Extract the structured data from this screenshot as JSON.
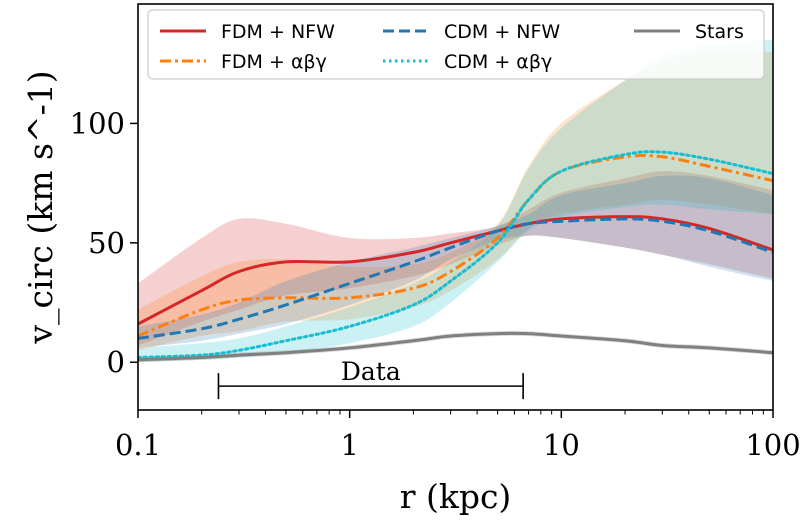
{
  "chart_data": {
    "type": "line",
    "title": "",
    "xlabel": "r (kpc)",
    "ylabel": "v_circ (km s^-1)",
    "xscale": "log",
    "xlim": [
      0.1,
      100
    ],
    "ylim": [
      -20,
      150
    ],
    "grid": false,
    "legend_position": "top",
    "x_ticks": [
      0.1,
      1,
      10,
      100
    ],
    "x_tick_labels": [
      "0.1",
      "1",
      "10",
      "100"
    ],
    "y_ticks": [
      0,
      50,
      100
    ],
    "y_tick_labels": [
      "0",
      "50",
      "100"
    ],
    "x": [
      0.1,
      0.2,
      0.3,
      0.5,
      1,
      2,
      3,
      5,
      7,
      10,
      20,
      30,
      50,
      100
    ],
    "series": [
      {
        "name": "FDM + NFW",
        "color": "#d62728",
        "style": "solid",
        "values": [
          16,
          30,
          38,
          42,
          42,
          46,
          50,
          55,
          58,
          60,
          61,
          60,
          56,
          47
        ],
        "band_upper": [
          33,
          52,
          60,
          58,
          52,
          52,
          54,
          57,
          64,
          71,
          77,
          80,
          78,
          72
        ],
        "band_lower": [
          7,
          17,
          22,
          28,
          31,
          36,
          41,
          49,
          53,
          52,
          48,
          45,
          41,
          35
        ]
      },
      {
        "name": "FDM + αβγ",
        "color": "#ff7f0e",
        "style": "dashdot",
        "values": [
          11,
          22,
          26,
          27,
          27,
          31,
          38,
          52,
          68,
          80,
          86,
          86,
          82,
          76
        ],
        "band_upper": [
          22,
          36,
          42,
          43,
          40,
          41,
          46,
          58,
          82,
          100,
          118,
          126,
          130,
          130
        ],
        "band_lower": [
          5,
          11,
          13,
          17,
          18,
          23,
          30,
          43,
          56,
          62,
          66,
          68,
          66,
          62
        ]
      },
      {
        "name": "CDM + NFW",
        "color": "#1f77b4",
        "style": "dashed",
        "values": [
          10,
          14,
          18,
          24,
          33,
          42,
          48,
          55,
          58,
          59,
          60,
          59,
          55,
          46
        ],
        "band_upper": [
          15,
          20,
          25,
          34,
          42,
          48,
          52,
          57,
          62,
          70,
          75,
          78,
          77,
          70
        ],
        "band_lower": [
          6,
          9,
          12,
          16,
          24,
          34,
          43,
          51,
          53,
          52,
          48,
          45,
          40,
          34
        ]
      },
      {
        "name": "CDM + αβγ",
        "color": "#17becf",
        "style": "dotted",
        "values": [
          2,
          3,
          5,
          9,
          15,
          24,
          34,
          50,
          68,
          80,
          87,
          88,
          85,
          79
        ],
        "band_upper": [
          6,
          8,
          10,
          15,
          23,
          33,
          42,
          57,
          81,
          98,
          118,
          128,
          133,
          135
        ],
        "band_lower": [
          0,
          1,
          2,
          4,
          8,
          15,
          25,
          42,
          55,
          61,
          65,
          66,
          64,
          62
        ]
      },
      {
        "name": "Stars",
        "color": "#808080",
        "style": "solid",
        "values": [
          1,
          2,
          3,
          4,
          6,
          9,
          11,
          12,
          12,
          11,
          9,
          7,
          6,
          4
        ],
        "band_upper": [
          2,
          3,
          4,
          5,
          7,
          10,
          12,
          13,
          13,
          12,
          10,
          8,
          7,
          5
        ],
        "band_lower": [
          0,
          1,
          2,
          3,
          5,
          8,
          10,
          11,
          11,
          10,
          8,
          6,
          5,
          3
        ]
      }
    ],
    "annotations": [
      {
        "text": "Data",
        "x_range": [
          0.24,
          6.6
        ],
        "y": -10
      }
    ]
  }
}
